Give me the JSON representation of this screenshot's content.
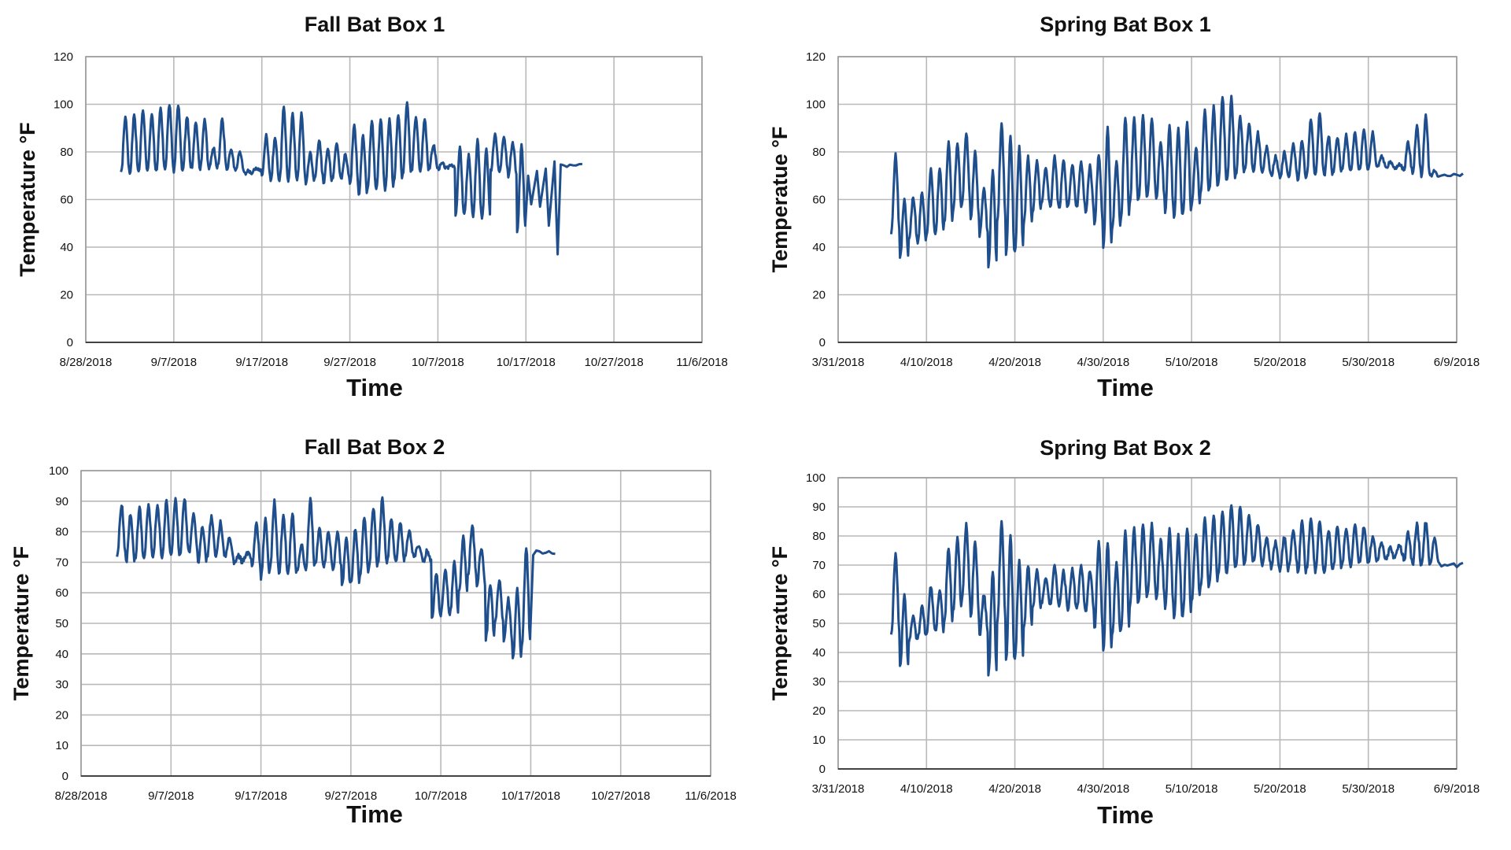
{
  "chart_data": [
    {
      "type": "line",
      "title": "Fall Bat Box 1",
      "xlabel": "Time",
      "ylabel": "Temperature °F",
      "ylim": [
        0,
        120
      ],
      "yticks": [
        "0",
        "20",
        "40",
        "60",
        "80",
        "100",
        "120"
      ],
      "xticks": [
        "8/28/2018",
        "9/7/2018",
        "9/17/2018",
        "9/27/2018",
        "10/7/2018",
        "10/17/2018",
        "10/27/2018",
        "11/6/2018"
      ],
      "grid": true,
      "color": "#1f4e8c",
      "series": [
        {
          "name": "Fall Bat Box 1",
          "x_start_day": 4.0,
          "days": 46,
          "daily": [
            [
              71,
              95
            ],
            [
              71,
              96
            ],
            [
              72,
              98
            ],
            [
              72,
              96
            ],
            [
              72,
              98
            ],
            [
              73,
              100
            ],
            [
              72,
              100
            ],
            [
              72,
              95
            ],
            [
              73,
              93
            ],
            [
              73,
              94
            ],
            [
              73,
              82
            ],
            [
              74,
              94
            ],
            [
              72,
              81
            ],
            [
              72,
              80
            ],
            [
              71,
              72
            ],
            [
              72,
              73
            ],
            [
              70,
              87
            ],
            [
              68,
              86
            ],
            [
              68,
              99
            ],
            [
              68,
              96
            ],
            [
              68,
              96
            ],
            [
              67,
              80
            ],
            [
              69,
              85
            ],
            [
              67,
              82
            ],
            [
              69,
              84
            ],
            [
              69,
              79
            ],
            [
              66,
              91
            ],
            [
              62,
              87
            ],
            [
              65,
              93
            ],
            [
              65,
              94
            ],
            [
              64,
              94
            ],
            [
              68,
              96
            ],
            [
              70,
              101
            ],
            [
              72,
              95
            ],
            [
              72,
              94
            ],
            [
              73,
              83
            ],
            [
              73,
              75
            ],
            [
              73,
              75
            ],
            [
              53,
              82
            ],
            [
              54,
              79
            ],
            [
              53,
              85
            ],
            [
              52,
              81
            ],
            [
              72,
              88
            ],
            [
              72,
              87
            ],
            [
              70,
              84
            ],
            [
              47,
              83
            ]
          ],
          "tail_min": [
            58,
            57,
            49,
            37
          ],
          "tail_max": [
            70,
            72,
            73,
            76
          ],
          "end_value": 74
        }
      ]
    },
    {
      "type": "line",
      "title": "Spring Bat Box 1",
      "xlabel": "Time",
      "ylabel": "Temperatue °F",
      "ylim": [
        0,
        120
      ],
      "yticks": [
        "0",
        "20",
        "40",
        "60",
        "80",
        "100",
        "120"
      ],
      "xticks": [
        "3/31/2018",
        "4/10/2018",
        "4/20/2018",
        "4/30/2018",
        "5/10/2018",
        "5/20/2018",
        "5/30/2018",
        "6/9/2018"
      ],
      "grid": true,
      "color": "#1f4e8c",
      "series": [
        {
          "name": "Spring Bat Box 1",
          "x_start_day": 6.0,
          "days": 62,
          "daily": [
            [
              46,
              79
            ],
            [
              36,
              60
            ],
            [
              43,
              61
            ],
            [
              42,
              63
            ],
            [
              45,
              73
            ],
            [
              46,
              73
            ],
            [
              50,
              84
            ],
            [
              55,
              84
            ],
            [
              58,
              88
            ],
            [
              52,
              80
            ],
            [
              45,
              65
            ],
            [
              32,
              72
            ],
            [
              51,
              92
            ],
            [
              37,
              87
            ],
            [
              38,
              82
            ],
            [
              50,
              78
            ],
            [
              55,
              76
            ],
            [
              58,
              73
            ],
            [
              57,
              78
            ],
            [
              56,
              77
            ],
            [
              57,
              75
            ],
            [
              57,
              76
            ],
            [
              55,
              74
            ],
            [
              50,
              79
            ],
            [
              40,
              90
            ],
            [
              48,
              76
            ],
            [
              52,
              95
            ],
            [
              58,
              94
            ],
            [
              60,
              95
            ],
            [
              62,
              94
            ],
            [
              60,
              84
            ],
            [
              55,
              91
            ],
            [
              52,
              90
            ],
            [
              54,
              92
            ],
            [
              58,
              82
            ],
            [
              62,
              98
            ],
            [
              64,
              99
            ],
            [
              66,
              103
            ],
            [
              68,
              103
            ],
            [
              70,
              95
            ],
            [
              72,
              92
            ],
            [
              72,
              88
            ],
            [
              71,
              82
            ],
            [
              70,
              78
            ],
            [
              69,
              80
            ],
            [
              70,
              83
            ],
            [
              68,
              85
            ],
            [
              70,
              94
            ],
            [
              71,
              96
            ],
            [
              70,
              87
            ],
            [
              71,
              86
            ],
            [
              72,
              87
            ],
            [
              72,
              88
            ],
            [
              72,
              90
            ],
            [
              73,
              88
            ],
            [
              74,
              78
            ],
            [
              73,
              76
            ],
            [
              73,
              75
            ],
            [
              72,
              84
            ],
            [
              71,
              91
            ],
            [
              70,
              95
            ],
            [
              70,
              72
            ]
          ],
          "end_value": 70
        }
      ]
    },
    {
      "type": "line",
      "title": "Fall Bat Box 2",
      "xlabel": "Time",
      "ylabel": "Temperature °F",
      "ylim": [
        0,
        100
      ],
      "yticks": [
        "0",
        "10",
        "20",
        "30",
        "40",
        "50",
        "60",
        "70",
        "80",
        "90",
        "100"
      ],
      "xticks": [
        "8/28/2018",
        "9/7/2018",
        "9/17/2018",
        "9/27/2018",
        "10/7/2018",
        "10/17/2018",
        "10/27/2018",
        "11/6/2018"
      ],
      "grid": true,
      "color": "#1f4e8c",
      "series": [
        {
          "name": "Fall Bat Box 2",
          "x_start_day": 4.0,
          "days": 46,
          "daily": [
            [
              72,
              89
            ],
            [
              70,
              86
            ],
            [
              71,
              88
            ],
            [
              71,
              89
            ],
            [
              72,
              89
            ],
            [
              72,
              90
            ],
            [
              72,
              91
            ],
            [
              73,
              91
            ],
            [
              73,
              86
            ],
            [
              70,
              82
            ],
            [
              72,
              85
            ],
            [
              72,
              83
            ],
            [
              72,
              78
            ],
            [
              70,
              72
            ],
            [
              71,
              73
            ],
            [
              68,
              83
            ],
            [
              65,
              84
            ],
            [
              68,
              90
            ],
            [
              66,
              86
            ],
            [
              66,
              86
            ],
            [
              67,
              76
            ],
            [
              68,
              91
            ],
            [
              69,
              81
            ],
            [
              69,
              80
            ],
            [
              68,
              80
            ],
            [
              62,
              78
            ],
            [
              63,
              81
            ],
            [
              65,
              85
            ],
            [
              68,
              88
            ],
            [
              70,
              91
            ],
            [
              70,
              84
            ],
            [
              70,
              83
            ],
            [
              72,
              80
            ],
            [
              72,
              75
            ],
            [
              70,
              74
            ],
            [
              52,
              66
            ],
            [
              53,
              68
            ],
            [
              53,
              70
            ],
            [
              60,
              78
            ],
            [
              66,
              82
            ],
            [
              62,
              75
            ],
            [
              45,
              63
            ],
            [
              50,
              64
            ],
            [
              44,
              58
            ],
            [
              38,
              61
            ],
            [
              43,
              75
            ]
          ],
          "end_value": 73
        }
      ]
    },
    {
      "type": "line",
      "title": "Spring Bat Box 2",
      "xlabel": "Time",
      "ylabel": "Temperature °F",
      "ylim": [
        0,
        100
      ],
      "yticks": [
        "0",
        "10",
        "20",
        "30",
        "40",
        "50",
        "60",
        "70",
        "80",
        "90",
        "100"
      ],
      "xticks": [
        "3/31/2018",
        "4/10/2018",
        "4/20/2018",
        "4/30/2018",
        "5/10/2018",
        "5/20/2018",
        "5/30/2018",
        "6/9/2018"
      ],
      "grid": true,
      "color": "#1f4e8c",
      "series": [
        {
          "name": "Spring Bat Box 2",
          "x_start_day": 6.0,
          "days": 62,
          "daily": [
            [
              46,
              74
            ],
            [
              35,
              60
            ],
            [
              44,
              52
            ],
            [
              45,
              56
            ],
            [
              47,
              63
            ],
            [
              47,
              62
            ],
            [
              50,
              76
            ],
            [
              54,
              80
            ],
            [
              58,
              84
            ],
            [
              52,
              78
            ],
            [
              46,
              60
            ],
            [
              32,
              68
            ],
            [
              50,
              85
            ],
            [
              37,
              80
            ],
            [
              38,
              72
            ],
            [
              48,
              70
            ],
            [
              55,
              68
            ],
            [
              57,
              66
            ],
            [
              56,
              70
            ],
            [
              56,
              68
            ],
            [
              55,
              69
            ],
            [
              55,
              70
            ],
            [
              54,
              68
            ],
            [
              48,
              78
            ],
            [
              40,
              78
            ],
            [
              46,
              71
            ],
            [
              48,
              82
            ],
            [
              56,
              83
            ],
            [
              58,
              84
            ],
            [
              60,
              84
            ],
            [
              58,
              79
            ],
            [
              55,
              82
            ],
            [
              52,
              80
            ],
            [
              53,
              83
            ],
            [
              58,
              81
            ],
            [
              62,
              86
            ],
            [
              64,
              87
            ],
            [
              66,
              89
            ],
            [
              68,
              91
            ],
            [
              69,
              90
            ],
            [
              71,
              87
            ],
            [
              71,
              84
            ],
            [
              70,
              80
            ],
            [
              69,
              78
            ],
            [
              68,
              80
            ],
            [
              70,
              82
            ],
            [
              67,
              85
            ],
            [
              69,
              86
            ],
            [
              68,
              85
            ],
            [
              68,
              82
            ],
            [
              69,
              83
            ],
            [
              70,
              83
            ],
            [
              70,
              84
            ],
            [
              71,
              83
            ],
            [
              71,
              80
            ],
            [
              72,
              78
            ],
            [
              72,
              76
            ],
            [
              73,
              77
            ],
            [
              71,
              81
            ],
            [
              70,
              84
            ],
            [
              70,
              85
            ],
            [
              70,
              80
            ]
          ],
          "end_value": 70
        }
      ]
    }
  ]
}
